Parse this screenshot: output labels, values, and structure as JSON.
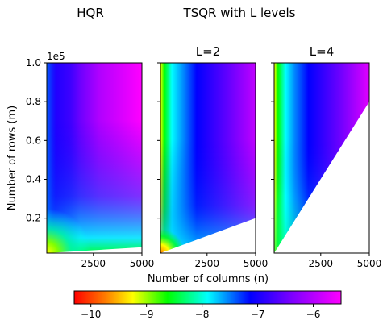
{
  "chart_data": {
    "type": "heatmap",
    "header_titles": [
      "HQR",
      "TSQR with L levels"
    ],
    "ylabel": "Number of rows (m)",
    "xlabel": "Number of columns (n)",
    "y_multiplier": "1e5",
    "ylim": [
      0.02,
      1.0
    ],
    "xlim": [
      100,
      5000
    ],
    "yticks": [
      "0.2",
      "0.4",
      "0.6",
      "0.8",
      "1.0"
    ],
    "xticks": [
      "2500",
      "5000"
    ],
    "colorbar": {
      "ticks": [
        "−10",
        "−9",
        "−8",
        "−7",
        "−6"
      ],
      "tick_values": [
        -10,
        -9,
        -8,
        -7,
        -6
      ],
      "range": [
        -10.3,
        -5.5
      ],
      "colormap": "gist_rainbow (red → magenta)"
    },
    "panels": [
      {
        "title": "",
        "method": "HQR",
        "valid_region_boundary_y_at_xmax": 0.05
      },
      {
        "title": "L=2",
        "method": "TSQR",
        "levels": 2,
        "valid_region_boundary_y_at_xmax": 0.2
      },
      {
        "title": "L=4",
        "method": "TSQR",
        "levels": 4,
        "valid_region_boundary_y_at_xmax": 0.8
      }
    ]
  }
}
